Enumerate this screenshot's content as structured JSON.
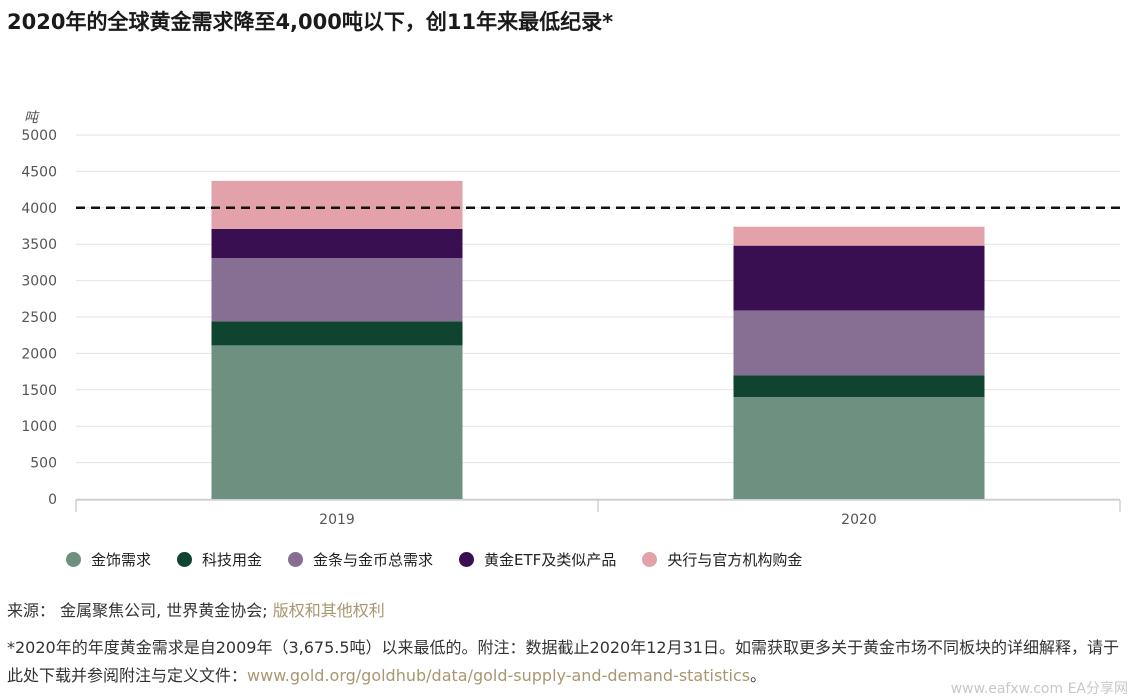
{
  "title": "2020年的全球黄金需求降至4,000吨以下，创11年来最低纪录*",
  "chart_data": {
    "type": "bar",
    "stacked": true,
    "unit_label": "吨",
    "categories": [
      "2019",
      "2020"
    ],
    "ylim": [
      0,
      5000
    ],
    "yticks": [
      0,
      500,
      1000,
      1500,
      2000,
      2500,
      3000,
      3500,
      4000,
      4500,
      5000
    ],
    "grid": true,
    "reference_line": {
      "value": 4000,
      "style": "dashed",
      "color": "#111111"
    },
    "series": [
      {
        "name": "金饰需求",
        "color": "#6e9080",
        "values": [
          2110,
          1400
        ]
      },
      {
        "name": "科技用金",
        "color": "#0f4430",
        "values": [
          330,
          300
        ]
      },
      {
        "name": "金条与金币总需求",
        "color": "#866f93",
        "values": [
          870,
          890
        ]
      },
      {
        "name": "黄金ETF及类似产品",
        "color": "#3a0f51",
        "values": [
          400,
          890
        ]
      },
      {
        "name": "央行与官方机构购金",
        "color": "#e3a2a9",
        "values": [
          660,
          260
        ]
      }
    ],
    "legend_position": "bottom"
  },
  "source": {
    "prefix": "来源： 金属聚焦公司, 世界黄金协会; ",
    "link": "版权和其他权利"
  },
  "note": {
    "text": "*2020年的年度黄金需求是自2009年（3,675.5吨）以来最低的。附注：数据截止2020年12月31日。如需获取更多关于黄金市场不同板块的详细解释，请于此处下载并参阅附注与定义文件：",
    "url": "www.gold.org/goldhub/data/gold-supply-and-demand-statistics",
    "suffix": "。"
  },
  "watermark": "www.eafxw.com  EA分享网"
}
